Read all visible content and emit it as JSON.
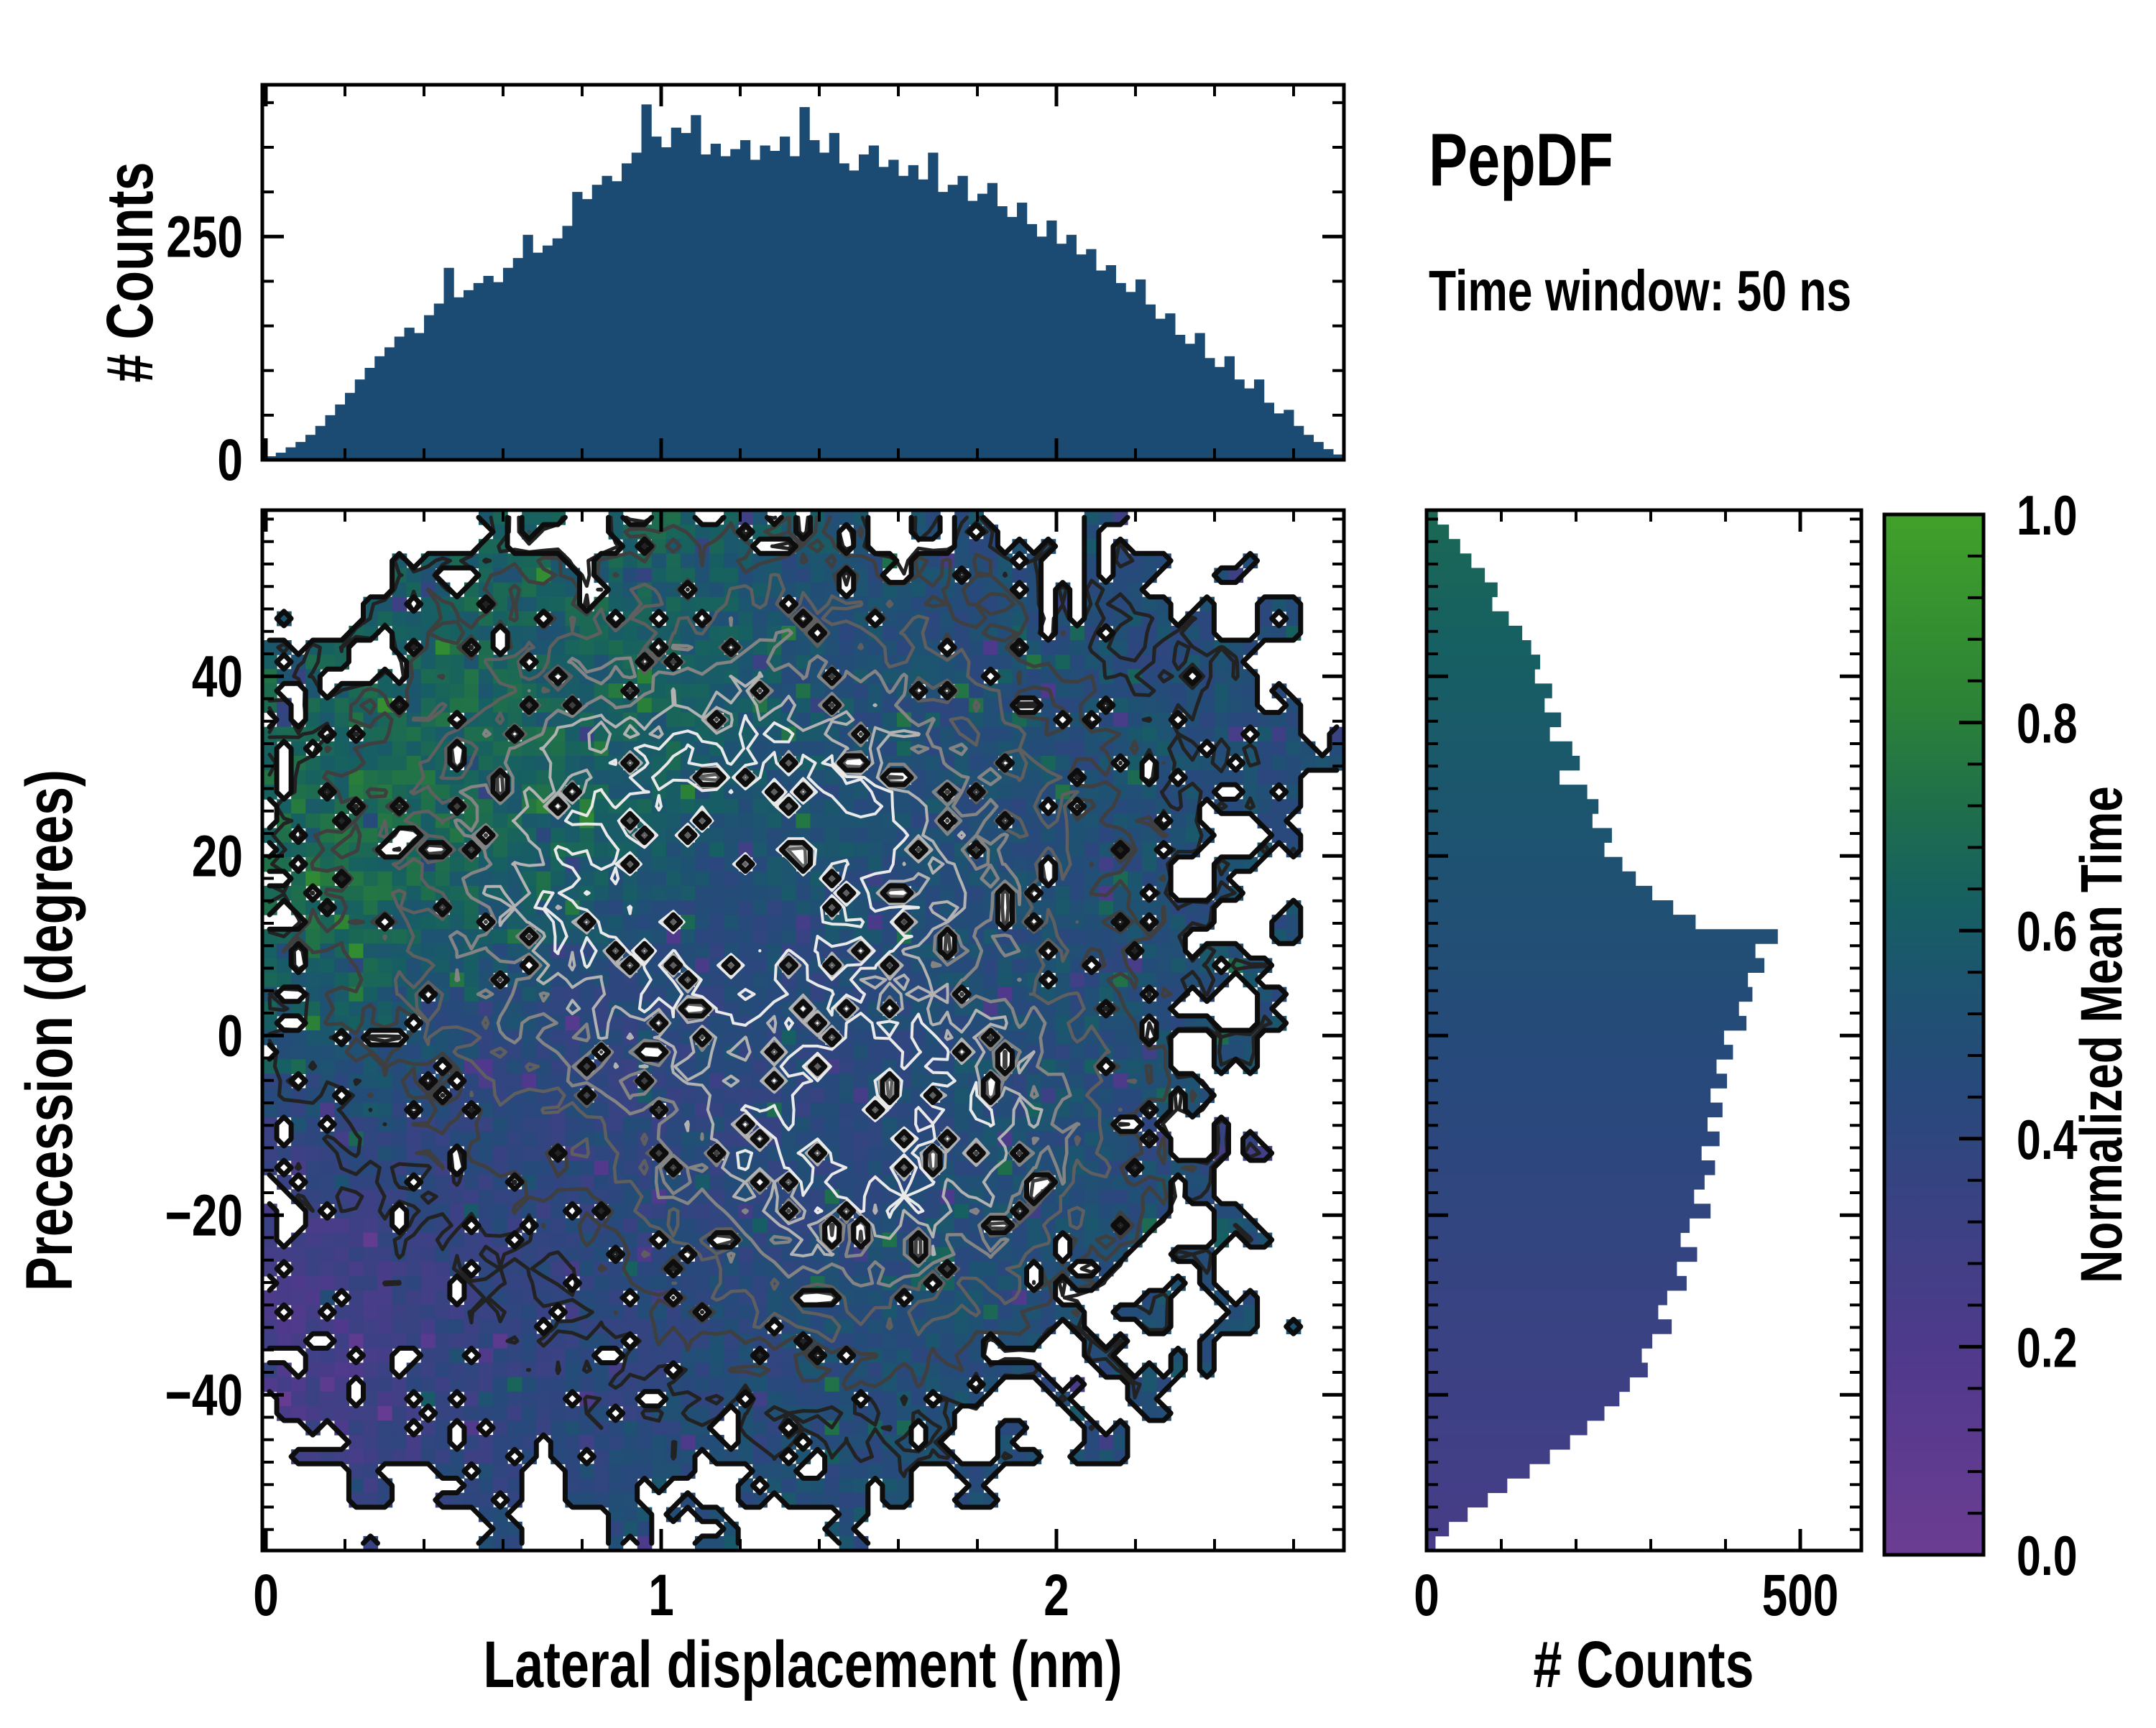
{
  "title": "PepDF",
  "subtitle": "Time window: 50 ns",
  "colors": {
    "background": "#ffffff",
    "histogram_bar": "#1b4a73",
    "axis": "#000000",
    "contour_outer": "#0d0d0d",
    "contour_mid": "#5f5f5f",
    "contour_inner": "#e8e8e8"
  },
  "colormap": {
    "label": "Normalized Mean Time",
    "tick_labels": [
      "0.0",
      "0.2",
      "0.4",
      "0.6",
      "0.8",
      "1.0"
    ],
    "tick_values": [
      0,
      0.2,
      0.4,
      0.6,
      0.8,
      1.0
    ],
    "minor_step": 0.04,
    "stops": [
      [
        0,
        "#6b3d92"
      ],
      [
        0.18,
        "#51398c"
      ],
      [
        0.32,
        "#3c4184"
      ],
      [
        0.45,
        "#27497b"
      ],
      [
        0.55,
        "#1d5470"
      ],
      [
        0.63,
        "#166061"
      ],
      [
        0.72,
        "#1f6f4b"
      ],
      [
        0.82,
        "#2c8336"
      ],
      [
        1,
        "#41a12a"
      ]
    ]
  },
  "chart_data": [
    {
      "id": "top_histogram",
      "type": "bar",
      "ylabel": "# Counts",
      "xlim": [
        0,
        2.727
      ],
      "ylim": [
        0,
        420
      ],
      "yticks": [
        {
          "v": 0,
          "label": "0"
        },
        {
          "v": 250,
          "label": "250"
        }
      ],
      "yminor_step": 50,
      "xticks": [
        0,
        1,
        2
      ],
      "xminor_step": 0.2,
      "bin_start": 0,
      "bin_width": 0.025,
      "values": [
        4,
        8,
        14,
        20,
        28,
        38,
        50,
        62,
        75,
        90,
        103,
        116,
        126,
        138,
        148,
        142,
        162,
        175,
        215,
        182,
        190,
        198,
        206,
        199,
        215,
        226,
        252,
        232,
        240,
        248,
        262,
        300,
        292,
        308,
        318,
        312,
        332,
        344,
        398,
        362,
        350,
        372,
        366,
        386,
        342,
        354,
        340,
        348,
        358,
        336,
        352,
        346,
        362,
        340,
        395,
        358,
        344,
        366,
        332,
        324,
        342,
        352,
        328,
        336,
        318,
        330,
        314,
        344,
        300,
        308,
        318,
        290,
        298,
        310,
        284,
        272,
        288,
        264,
        250,
        268,
        242,
        252,
        230,
        236,
        212,
        218,
        198,
        188,
        202,
        174,
        158,
        164,
        140,
        130,
        142,
        114,
        104,
        116,
        90,
        80,
        90,
        64,
        52,
        56,
        38,
        28,
        20,
        12,
        6
      ]
    },
    {
      "id": "joint_heatmap",
      "type": "heatmap",
      "xlabel": "Lateral displacement (nm)",
      "ylabel": "Precession (degrees)",
      "value_label": "Normalized Mean Time",
      "xlim": [
        0,
        2.727
      ],
      "ylim": [
        -57.3,
        58.5
      ],
      "xticks": [
        {
          "v": 0,
          "label": "0"
        },
        {
          "v": 1,
          "label": "1"
        },
        {
          "v": 2,
          "label": "2"
        }
      ],
      "yticks": [
        {
          "v": 40,
          "label": "40"
        },
        {
          "v": 20,
          "label": "20"
        },
        {
          "v": 0,
          "label": "0"
        },
        {
          "v": -20,
          "label": "−20"
        },
        {
          "v": -40,
          "label": "−40"
        }
      ],
      "xminor_step": 0.2,
      "yminor_step": 2.5,
      "grid_cols": 25,
      "grid_rows": 24,
      "empty_value": -1,
      "values": [
        [
          -1,
          -1,
          -1,
          -1,
          -1,
          0.62,
          0.6,
          -1,
          0.62,
          0.64,
          0.6,
          0.58,
          0.55,
          0.52,
          -1,
          0.5,
          0.5,
          -1,
          -1,
          0.5,
          -1,
          -1,
          -1,
          -1,
          -1
        ],
        [
          -1,
          -1,
          -1,
          0.6,
          0.62,
          0.6,
          0.63,
          0.6,
          0.62,
          0.6,
          0.58,
          0.55,
          0.5,
          0.52,
          0.5,
          0.5,
          0.48,
          0.5,
          -1,
          0.5,
          0.5,
          -1,
          0.5,
          -1,
          -1
        ],
        [
          -1,
          -1,
          0.62,
          0.6,
          0.65,
          0.62,
          0.6,
          0.64,
          0.6,
          0.62,
          0.58,
          0.55,
          0.52,
          0.5,
          0.5,
          0.48,
          0.5,
          0.5,
          0.5,
          0.48,
          0.5,
          0.5,
          -1,
          0.5,
          -1
        ],
        [
          0.6,
          0.62,
          -1,
          0.64,
          0.62,
          0.66,
          0.62,
          0.6,
          0.63,
          0.6,
          0.58,
          0.55,
          0.52,
          0.5,
          0.5,
          0.5,
          0.48,
          0.5,
          0.5,
          0.5,
          0.48,
          0.5,
          0.5,
          -1,
          -1
        ],
        [
          0.65,
          0.62,
          0.66,
          0.63,
          0.68,
          0.64,
          0.62,
          0.65,
          0.62,
          0.6,
          0.58,
          0.56,
          0.52,
          0.5,
          0.5,
          0.48,
          0.5,
          0.5,
          0.48,
          0.5,
          0.5,
          0.48,
          0.5,
          0.5,
          -1
        ],
        [
          0.66,
          0.68,
          0.64,
          0.67,
          0.65,
          0.7,
          0.66,
          0.63,
          0.6,
          0.62,
          0.58,
          0.55,
          0.54,
          0.52,
          0.5,
          0.5,
          0.48,
          0.5,
          0.5,
          0.48,
          0.52,
          0.5,
          0.48,
          0.5,
          0.5
        ],
        [
          0.7,
          0.66,
          0.72,
          0.68,
          0.66,
          0.64,
          0.68,
          0.62,
          0.6,
          0.58,
          0.56,
          0.54,
          0.52,
          0.5,
          0.52,
          0.5,
          0.5,
          0.48,
          0.5,
          0.52,
          0.48,
          0.5,
          0.5,
          0.48,
          -1
        ],
        [
          0.68,
          0.72,
          0.7,
          0.66,
          0.68,
          0.65,
          0.62,
          0.6,
          0.58,
          0.56,
          0.55,
          0.52,
          0.5,
          0.52,
          0.5,
          0.48,
          0.5,
          0.5,
          0.52,
          0.48,
          0.5,
          0.5,
          -1,
          0.5,
          -1
        ],
        [
          0.72,
          0.7,
          0.68,
          0.66,
          0.64,
          0.6,
          0.58,
          0.56,
          0.55,
          0.52,
          0.5,
          0.5,
          0.52,
          0.48,
          0.5,
          0.5,
          0.48,
          0.5,
          0.5,
          0.48,
          0.5,
          -1,
          0.5,
          -1,
          -1
        ],
        [
          0.66,
          0.68,
          0.65,
          0.62,
          0.6,
          0.58,
          0.55,
          0.52,
          0.5,
          0.48,
          0.5,
          0.46,
          0.48,
          0.5,
          0.48,
          0.5,
          0.52,
          0.48,
          0.5,
          0.5,
          0.52,
          0.5,
          -1,
          0.5,
          -1
        ],
        [
          0.62,
          0.6,
          0.62,
          0.58,
          0.56,
          0.52,
          0.5,
          0.48,
          0.46,
          0.45,
          0.44,
          0.46,
          0.45,
          0.48,
          0.46,
          0.5,
          0.48,
          0.5,
          0.5,
          0.48,
          0.5,
          0.5,
          0.5,
          -1,
          -1
        ],
        [
          0.6,
          0.58,
          0.56,
          0.54,
          0.5,
          0.48,
          0.46,
          0.44,
          0.42,
          0.44,
          0.43,
          0.45,
          0.44,
          0.46,
          0.48,
          0.46,
          0.5,
          0.48,
          0.5,
          0.52,
          0.5,
          0.48,
          -1,
          0.5,
          -1
        ],
        [
          0.55,
          0.56,
          0.52,
          0.5,
          0.48,
          0.45,
          0.43,
          0.42,
          0.4,
          0.42,
          0.44,
          0.42,
          0.45,
          0.44,
          0.46,
          0.48,
          0.5,
          0.5,
          0.48,
          0.5,
          0.5,
          -1,
          0.5,
          -1,
          -1
        ],
        [
          0.45,
          0.48,
          0.5,
          0.46,
          0.44,
          0.42,
          0.4,
          0.42,
          0.4,
          0.42,
          0.4,
          0.44,
          0.42,
          0.45,
          0.46,
          0.48,
          0.5,
          0.48,
          0.5,
          0.48,
          0.5,
          0.5,
          -1,
          -1,
          -1
        ],
        [
          0.38,
          0.42,
          0.44,
          0.42,
          0.4,
          0.42,
          0.38,
          0.4,
          0.42,
          0.4,
          0.44,
          0.42,
          0.45,
          0.44,
          0.46,
          0.48,
          0.5,
          0.5,
          0.48,
          0.5,
          0.48,
          -1,
          0.32,
          -1,
          -1
        ],
        [
          0.32,
          0.35,
          0.38,
          0.4,
          0.38,
          0.4,
          0.42,
          0.4,
          0.42,
          0.44,
          0.42,
          0.45,
          0.44,
          0.46,
          0.48,
          0.5,
          0.48,
          0.5,
          0.5,
          0.48,
          0.5,
          0.5,
          -1,
          -1,
          -1
        ],
        [
          0.28,
          0.3,
          0.34,
          0.36,
          0.38,
          0.4,
          0.38,
          0.42,
          0.4,
          0.44,
          0.42,
          0.45,
          0.46,
          0.44,
          0.48,
          0.5,
          0.48,
          0.5,
          0.48,
          0.5,
          0.48,
          -1,
          0.5,
          -1,
          -1
        ],
        [
          0.25,
          0.28,
          0.3,
          0.34,
          0.36,
          0.38,
          0.4,
          0.42,
          0.44,
          0.42,
          0.45,
          0.44,
          0.46,
          0.48,
          0.46,
          0.6,
          0.48,
          0.5,
          0.5,
          0.48,
          -1,
          0.5,
          -1,
          -1,
          -1
        ],
        [
          0.24,
          0.26,
          0.3,
          0.32,
          0.36,
          0.38,
          0.4,
          0.42,
          0.4,
          0.44,
          0.45,
          0.46,
          0.44,
          0.48,
          0.5,
          0.48,
          0.5,
          0.48,
          0.5,
          -1,
          0.5,
          -1,
          0.5,
          -1,
          -1
        ],
        [
          0.22,
          0.25,
          0.28,
          0.32,
          0.34,
          0.38,
          0.4,
          0.42,
          0.44,
          0.42,
          0.46,
          0.44,
          0.48,
          0.46,
          0.48,
          0.5,
          0.48,
          0.5,
          -1,
          0.5,
          -1,
          0.5,
          -1,
          -1,
          -1
        ],
        [
          0.24,
          0.26,
          0.3,
          0.34,
          0.36,
          0.4,
          0.42,
          0.44,
          0.42,
          0.46,
          0.44,
          0.48,
          0.46,
          0.48,
          0.5,
          0.48,
          0.5,
          -1,
          0.5,
          -1,
          0.5,
          -1,
          -1,
          -1,
          -1
        ],
        [
          -1,
          0.28,
          0.32,
          0.34,
          0.38,
          0.4,
          0.42,
          0.44,
          0.46,
          0.44,
          0.48,
          0.46,
          0.48,
          0.5,
          0.48,
          0.5,
          -1,
          0.5,
          -1,
          0.5,
          -1,
          -1,
          -1,
          -1,
          -1
        ],
        [
          -1,
          -1,
          0.35,
          -1,
          0.4,
          0.42,
          -1,
          0.44,
          0.46,
          0.48,
          -1,
          0.48,
          0.5,
          0.48,
          0.5,
          -1,
          0.5,
          -1,
          -1,
          -1,
          -1,
          -1,
          -1,
          -1,
          -1
        ],
        [
          -1,
          -1,
          -1,
          -1,
          -1,
          0.45,
          -1,
          -1,
          0.48,
          -1,
          0.5,
          -1,
          -1,
          0.5,
          -1,
          -1,
          -1,
          -1,
          -1,
          -1,
          -1,
          -1,
          -1,
          -1,
          -1
        ]
      ],
      "contour_levels": 6
    },
    {
      "id": "right_histogram",
      "type": "bar",
      "orientation": "horizontal",
      "xlabel": "# Counts",
      "xlim": [
        0,
        580
      ],
      "xticks": [
        {
          "v": 0,
          "label": "0"
        },
        {
          "v": 500,
          "label": "500"
        }
      ],
      "xminor_step": 100,
      "row_color_value_top": 0.68,
      "row_color_value_bottom": 0.25,
      "values": [
        15,
        30,
        45,
        60,
        78,
        95,
        88,
        110,
        128,
        140,
        152,
        145,
        168,
        158,
        180,
        165,
        195,
        205,
        178,
        215,
        230,
        222,
        248,
        238,
        262,
        280,
        302,
        330,
        360,
        470,
        440,
        452,
        430,
        436,
        418,
        428,
        398,
        410,
        388,
        402,
        380,
        396,
        376,
        392,
        368,
        386,
        372,
        358,
        380,
        352,
        340,
        362,
        335,
        348,
        322,
        310,
        328,
        302,
        288,
        296,
        272,
        258,
        238,
        215,
        192,
        165,
        138,
        108,
        82,
        55,
        30,
        12
      ]
    }
  ]
}
